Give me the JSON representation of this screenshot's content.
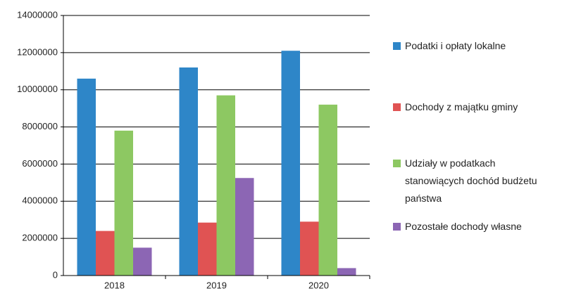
{
  "chart_data": {
    "type": "bar",
    "categories": [
      "2018",
      "2019",
      "2020"
    ],
    "series": [
      {
        "name": "Podatki i opłaty lokalne",
        "color": "#2e86c8",
        "values": [
          10600000,
          11200000,
          12100000
        ]
      },
      {
        "name": "Dochody z majątku gminy",
        "color": "#e05353",
        "values": [
          2400000,
          2850000,
          2900000
        ]
      },
      {
        "name": "Udziały w podatkach stanowiących dochód budżetu państwa",
        "color": "#8dc862",
        "values": [
          7800000,
          9700000,
          9200000
        ]
      },
      {
        "name": "Pozostałe dochody własne",
        "color": "#8c66b4",
        "values": [
          1500000,
          5250000,
          400000
        ]
      }
    ],
    "ylim": [
      0,
      14000000
    ],
    "yticks": [
      0,
      2000000,
      4000000,
      6000000,
      8000000,
      10000000,
      12000000,
      14000000
    ],
    "grid": true,
    "legend": "right"
  }
}
